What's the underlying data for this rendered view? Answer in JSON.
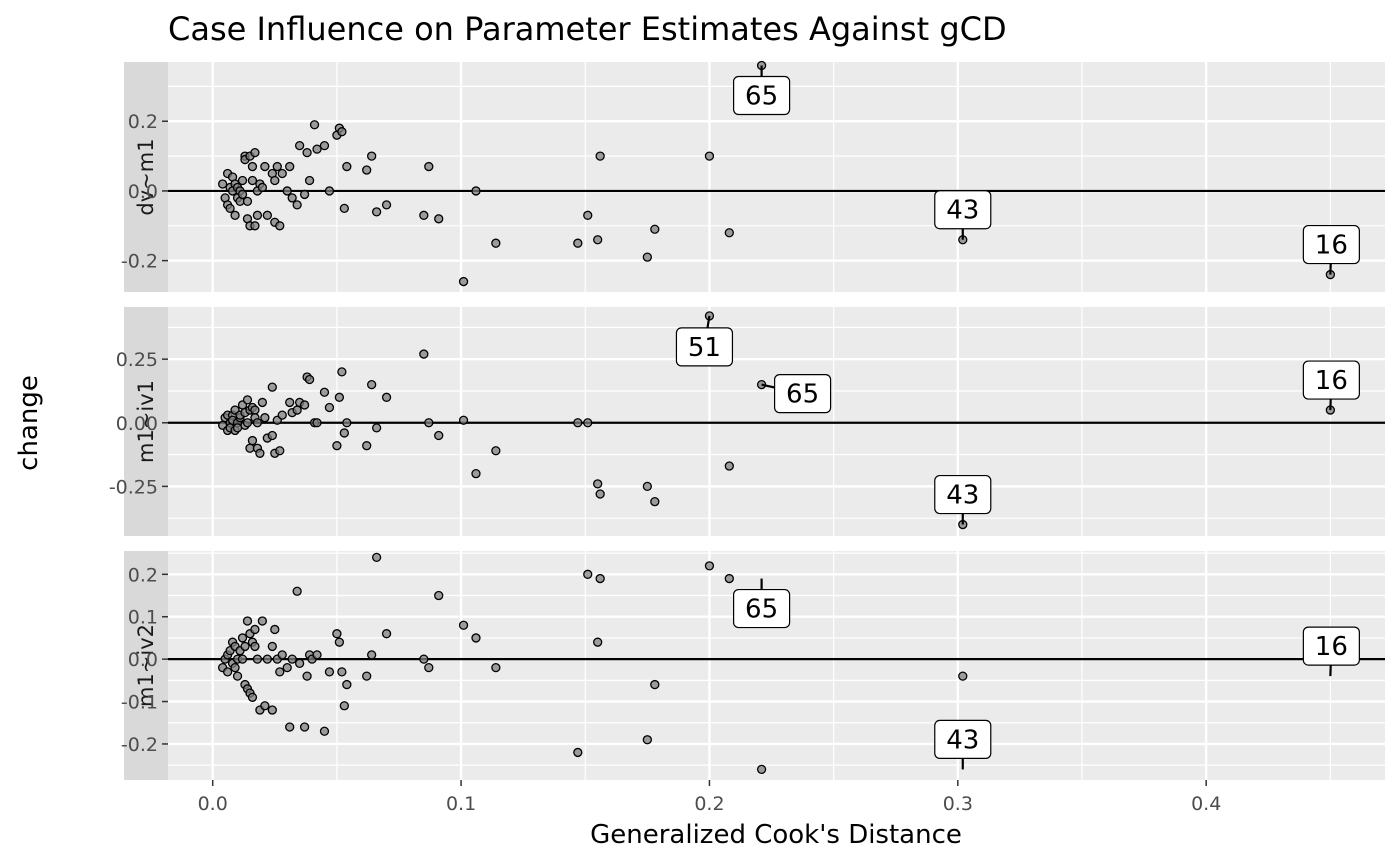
{
  "chart_data": {
    "type": "scatter",
    "title": "Case Influence on Parameter Estimates Against gCD",
    "xlabel": "Generalized Cook's Distance",
    "ylabel": "change",
    "xlim": [
      -0.018,
      0.472
    ],
    "x_ticks": [
      0.0,
      0.1,
      0.2,
      0.3,
      0.4
    ],
    "x_tick_labels": [
      "0.0",
      "0.1",
      "0.2",
      "0.3",
      "0.4"
    ],
    "grid": true,
    "reference_line_y": 0,
    "panels": [
      {
        "name": "dv~m1",
        "ylim": [
          -0.29,
          0.37
        ],
        "y_ticks": [
          -0.2,
          0.0,
          0.2
        ],
        "y_tick_labels": [
          "-0.2",
          "0.0",
          "0.2"
        ],
        "x": [
          0.004,
          0.005,
          0.006,
          0.006,
          0.007,
          0.007,
          0.008,
          0.008,
          0.009,
          0.009,
          0.01,
          0.01,
          0.011,
          0.011,
          0.012,
          0.012,
          0.013,
          0.013,
          0.014,
          0.014,
          0.015,
          0.015,
          0.016,
          0.016,
          0.017,
          0.017,
          0.018,
          0.018,
          0.019,
          0.02,
          0.021,
          0.022,
          0.024,
          0.025,
          0.025,
          0.026,
          0.027,
          0.028,
          0.03,
          0.031,
          0.032,
          0.034,
          0.035,
          0.037,
          0.038,
          0.039,
          0.041,
          0.042,
          0.045,
          0.047,
          0.05,
          0.051,
          0.052,
          0.053,
          0.054,
          0.062,
          0.064,
          0.066,
          0.07,
          0.085,
          0.087,
          0.091,
          0.101,
          0.106,
          0.114,
          0.147,
          0.151,
          0.155,
          0.156,
          0.175,
          0.178,
          0.2,
          0.208,
          0.221,
          0.302,
          0.45
        ],
        "y": [
          0.02,
          -0.02,
          0.05,
          -0.04,
          0.01,
          -0.05,
          0.04,
          0.0,
          -0.07,
          0.02,
          -0.02,
          0.01,
          -0.03,
          0.0,
          -0.01,
          0.03,
          0.1,
          0.09,
          -0.03,
          -0.08,
          0.1,
          -0.1,
          0.03,
          0.07,
          0.11,
          -0.1,
          -0.07,
          0.0,
          0.02,
          0.01,
          0.07,
          -0.07,
          0.05,
          0.03,
          -0.09,
          0.07,
          -0.1,
          0.05,
          0.0,
          0.07,
          -0.02,
          -0.04,
          0.13,
          -0.01,
          0.11,
          0.03,
          0.19,
          0.12,
          0.13,
          0.0,
          0.16,
          0.18,
          0.17,
          -0.05,
          0.07,
          0.06,
          0.1,
          -0.06,
          -0.04,
          -0.07,
          0.07,
          -0.08,
          -0.26,
          0.0,
          -0.15,
          -0.15,
          -0.07,
          -0.14,
          0.1,
          -0.19,
          -0.11,
          0.1,
          -0.12,
          0.36,
          -0.14,
          -0.24
        ],
        "labels": [
          {
            "text": "65",
            "x": 0.221,
            "y": 0.36
          },
          {
            "text": "43",
            "x": 0.302,
            "y": -0.14
          },
          {
            "text": "16",
            "x": 0.45,
            "y": -0.24
          }
        ]
      },
      {
        "name": "m1~iv1",
        "ylim": [
          -0.445,
          0.455
        ],
        "y_ticks": [
          -0.25,
          0.0,
          0.25
        ],
        "y_tick_labels": [
          "-0.25",
          "0.00",
          "0.25"
        ],
        "x": [
          0.004,
          0.005,
          0.006,
          0.006,
          0.007,
          0.007,
          0.008,
          0.008,
          0.009,
          0.009,
          0.01,
          0.01,
          0.011,
          0.011,
          0.012,
          0.013,
          0.013,
          0.014,
          0.014,
          0.015,
          0.015,
          0.016,
          0.016,
          0.017,
          0.017,
          0.018,
          0.018,
          0.019,
          0.02,
          0.021,
          0.022,
          0.024,
          0.024,
          0.025,
          0.026,
          0.027,
          0.028,
          0.031,
          0.032,
          0.034,
          0.035,
          0.037,
          0.038,
          0.039,
          0.041,
          0.042,
          0.045,
          0.047,
          0.05,
          0.051,
          0.052,
          0.053,
          0.054,
          0.062,
          0.064,
          0.066,
          0.07,
          0.085,
          0.087,
          0.091,
          0.101,
          0.106,
          0.114,
          0.147,
          0.151,
          0.155,
          0.156,
          0.175,
          0.178,
          0.2,
          0.208,
          0.221,
          0.302,
          0.45
        ],
        "y": [
          -0.01,
          0.02,
          -0.03,
          0.03,
          0.0,
          -0.02,
          0.03,
          0.01,
          -0.03,
          0.05,
          0.0,
          -0.02,
          0.02,
          0.03,
          0.07,
          -0.01,
          0.04,
          0.0,
          0.09,
          0.05,
          -0.1,
          0.06,
          -0.07,
          0.05,
          0.02,
          -0.1,
          0.0,
          -0.12,
          0.08,
          0.02,
          -0.06,
          0.14,
          -0.05,
          -0.12,
          0.01,
          -0.11,
          0.03,
          0.08,
          0.04,
          0.05,
          0.08,
          0.07,
          0.18,
          0.17,
          0.0,
          0.0,
          0.12,
          0.06,
          -0.09,
          0.1,
          0.2,
          -0.04,
          0.0,
          -0.09,
          0.15,
          -0.02,
          0.1,
          0.27,
          0.0,
          -0.05,
          0.01,
          -0.2,
          -0.11,
          0.0,
          0.0,
          -0.24,
          -0.28,
          -0.25,
          -0.31,
          0.42,
          -0.17,
          0.15,
          -0.4,
          0.05
        ],
        "labels": [
          {
            "text": "51",
            "x": 0.2,
            "y": 0.42
          },
          {
            "text": "65",
            "x": 0.221,
            "y": 0.15
          },
          {
            "text": "16",
            "x": 0.45,
            "y": 0.05
          },
          {
            "text": "43",
            "x": 0.302,
            "y": -0.4
          }
        ]
      },
      {
        "name": "m1~iv2",
        "ylim": [
          -0.285,
          0.255
        ],
        "y_ticks": [
          -0.2,
          -0.1,
          0.0,
          0.1,
          0.2
        ],
        "y_tick_labels": [
          "-0.2",
          "-0.1",
          "0.0",
          "0.1",
          "0.2"
        ],
        "x": [
          0.004,
          0.005,
          0.006,
          0.006,
          0.007,
          0.008,
          0.008,
          0.009,
          0.009,
          0.01,
          0.01,
          0.011,
          0.012,
          0.012,
          0.013,
          0.013,
          0.014,
          0.014,
          0.015,
          0.015,
          0.016,
          0.016,
          0.017,
          0.017,
          0.018,
          0.019,
          0.02,
          0.021,
          0.022,
          0.024,
          0.024,
          0.025,
          0.026,
          0.027,
          0.028,
          0.03,
          0.031,
          0.032,
          0.034,
          0.035,
          0.037,
          0.038,
          0.039,
          0.04,
          0.042,
          0.045,
          0.047,
          0.05,
          0.051,
          0.052,
          0.053,
          0.054,
          0.062,
          0.064,
          0.066,
          0.07,
          0.085,
          0.087,
          0.091,
          0.101,
          0.106,
          0.114,
          0.147,
          0.151,
          0.155,
          0.156,
          0.175,
          0.178,
          0.2,
          0.208,
          0.221,
          0.302,
          0.45
        ],
        "y": [
          -0.02,
          0.0,
          0.01,
          -0.03,
          0.02,
          -0.01,
          0.04,
          -0.02,
          0.03,
          0.0,
          -0.04,
          0.02,
          0.05,
          0.0,
          -0.06,
          0.03,
          -0.07,
          0.09,
          0.06,
          -0.08,
          0.04,
          -0.09,
          0.07,
          0.03,
          0.0,
          -0.12,
          0.09,
          -0.11,
          0.0,
          0.03,
          -0.12,
          0.07,
          0.0,
          -0.03,
          0.01,
          -0.02,
          -0.16,
          0.0,
          0.16,
          -0.01,
          -0.16,
          -0.04,
          0.01,
          0.0,
          0.01,
          -0.17,
          -0.03,
          0.06,
          0.04,
          -0.03,
          -0.11,
          -0.06,
          -0.04,
          0.01,
          0.24,
          0.06,
          0.0,
          -0.02,
          0.15,
          0.08,
          0.05,
          -0.02,
          -0.22,
          0.2,
          0.04,
          0.19,
          -0.19,
          -0.06,
          0.22,
          0.19,
          -0.26,
          -0.04,
          0.0
        ],
        "labels": [
          {
            "text": "65",
            "x": 0.221,
            "y": 0.19
          },
          {
            "text": "16",
            "x": 0.45,
            "y": -0.04
          },
          {
            "text": "43",
            "x": 0.302,
            "y": -0.26
          }
        ]
      }
    ]
  }
}
